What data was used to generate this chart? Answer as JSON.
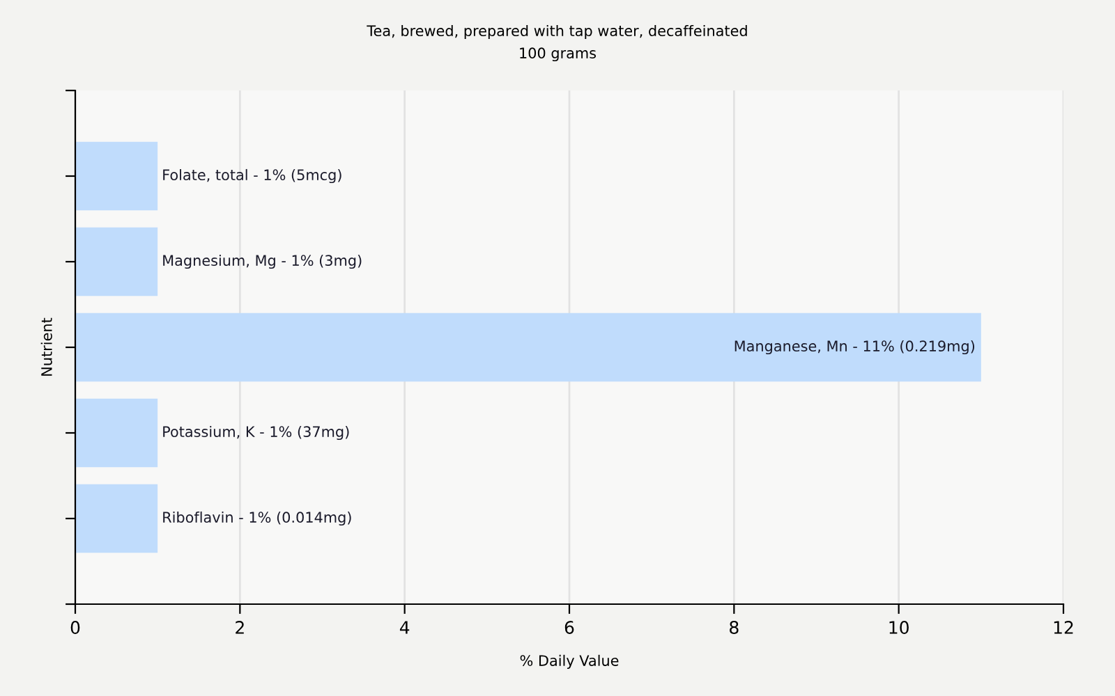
{
  "chart_data": {
    "type": "bar",
    "orientation": "horizontal",
    "title": "Tea, brewed, prepared with tap water, decaffeinated",
    "subtitle": "100 grams",
    "xlabel": "% Daily Value",
    "ylabel": "Nutrient",
    "categories": [
      "Folate, total -",
      "Magnesium, Mg -",
      "Manganese, Mn -",
      "Potassium, K -",
      "Riboflavin -"
    ],
    "values": [
      1,
      1,
      11,
      1,
      1
    ],
    "value_labels": [
      "1% (5mcg)",
      "1% (3mg)",
      "11% (0.219mg)",
      "1% (37mg)",
      "1% (0.014mg)"
    ],
    "color": "#c0dcfc",
    "xlim": [
      0,
      12
    ],
    "xticks": [
      0,
      2,
      4,
      6,
      8,
      10,
      12
    ],
    "grid": "x"
  }
}
